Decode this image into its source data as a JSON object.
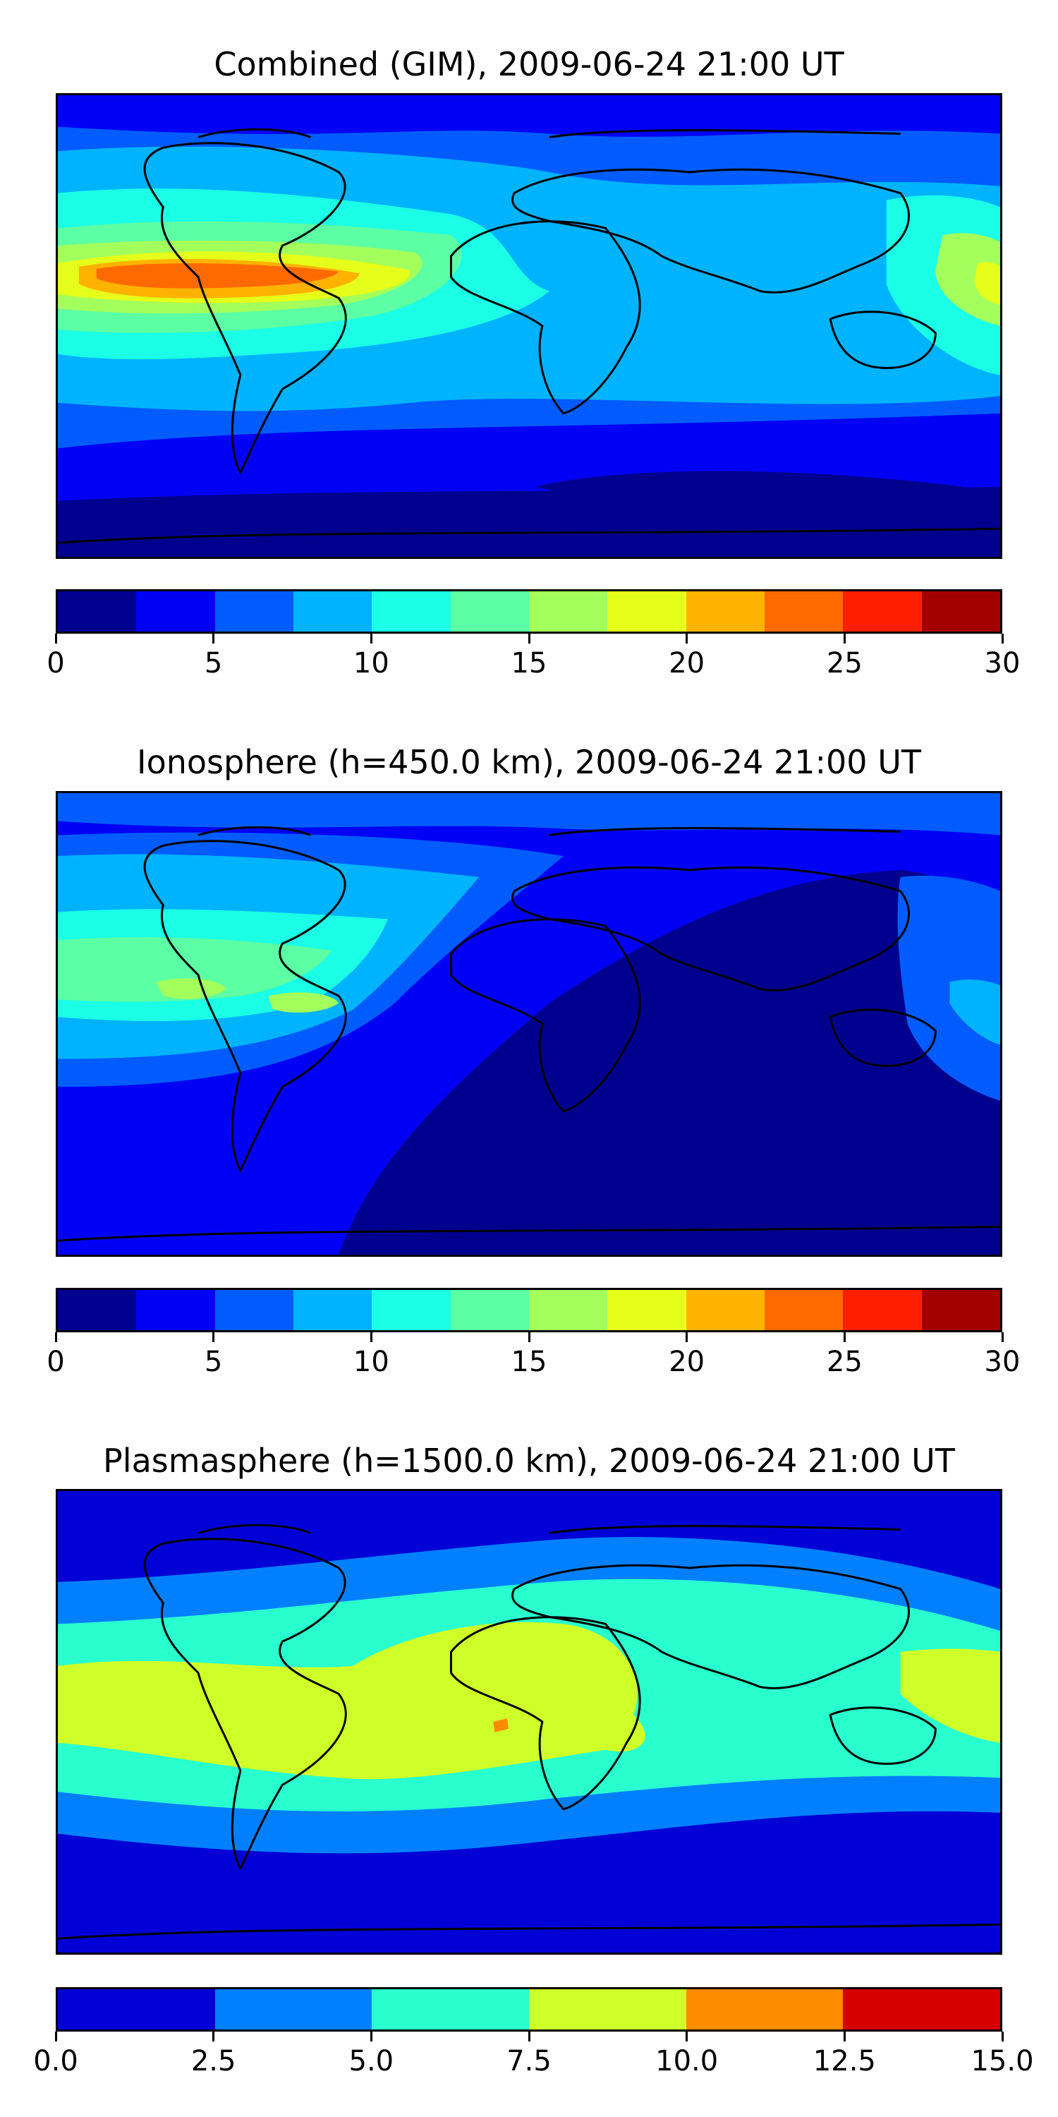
{
  "panels": [
    {
      "title": "Combined (GIM), 2009-06-24 21:00 UT",
      "chart_data": {
        "type": "heatmap",
        "title": "Combined (GIM), 2009-06-24 21:00 UT",
        "colorbar": {
          "min": 0,
          "max": 30,
          "levels": [
            0,
            2.5,
            5,
            7.5,
            10,
            12.5,
            15,
            17.5,
            20,
            22.5,
            25,
            27.5,
            30
          ],
          "tick_labels": [
            "0",
            "5",
            "10",
            "15",
            "20",
            "25",
            "30"
          ],
          "colors": [
            "#00008f",
            "#0000f5",
            "#005cff",
            "#00b3ff",
            "#1affe5",
            "#5cffa3",
            "#a3ff5c",
            "#e5ff1a",
            "#ffb300",
            "#ff6a00",
            "#ff1f00",
            "#a30000"
          ]
        }
      }
    },
    {
      "title": "Ionosphere  (h=450.0 km), 2009-06-24 21:00 UT",
      "chart_data": {
        "type": "heatmap",
        "title": "Ionosphere  (h=450.0 km), 2009-06-24 21:00 UT",
        "colorbar": {
          "min": 0,
          "max": 30,
          "levels": [
            0,
            2.5,
            5,
            7.5,
            10,
            12.5,
            15,
            17.5,
            20,
            22.5,
            25,
            27.5,
            30
          ],
          "tick_labels": [
            "0",
            "5",
            "10",
            "15",
            "20",
            "25",
            "30"
          ],
          "colors": [
            "#00008f",
            "#0000f5",
            "#005cff",
            "#00b3ff",
            "#1affe5",
            "#5cffa3",
            "#a3ff5c",
            "#e5ff1a",
            "#ffb300",
            "#ff6a00",
            "#ff1f00",
            "#a30000"
          ]
        }
      }
    },
    {
      "title": "Plasmasphere (h=1500.0 km), 2009-06-24 21:00 UT",
      "chart_data": {
        "type": "heatmap",
        "title": "Plasmasphere (h=1500.0 km), 2009-06-24 21:00 UT",
        "colorbar": {
          "min": 0,
          "max": 15,
          "levels": [
            0,
            2.5,
            5,
            7.5,
            10,
            12.5,
            15
          ],
          "tick_labels": [
            "0.0",
            "2.5",
            "5.0",
            "7.5",
            "10.0",
            "12.5",
            "15.0"
          ],
          "colors": [
            "#0000d6",
            "#0080ff",
            "#29ffce",
            "#ceff29",
            "#ff8c00",
            "#d60000"
          ]
        }
      }
    }
  ],
  "colors": {
    "coastline": "#000000",
    "frame": "#000000"
  }
}
